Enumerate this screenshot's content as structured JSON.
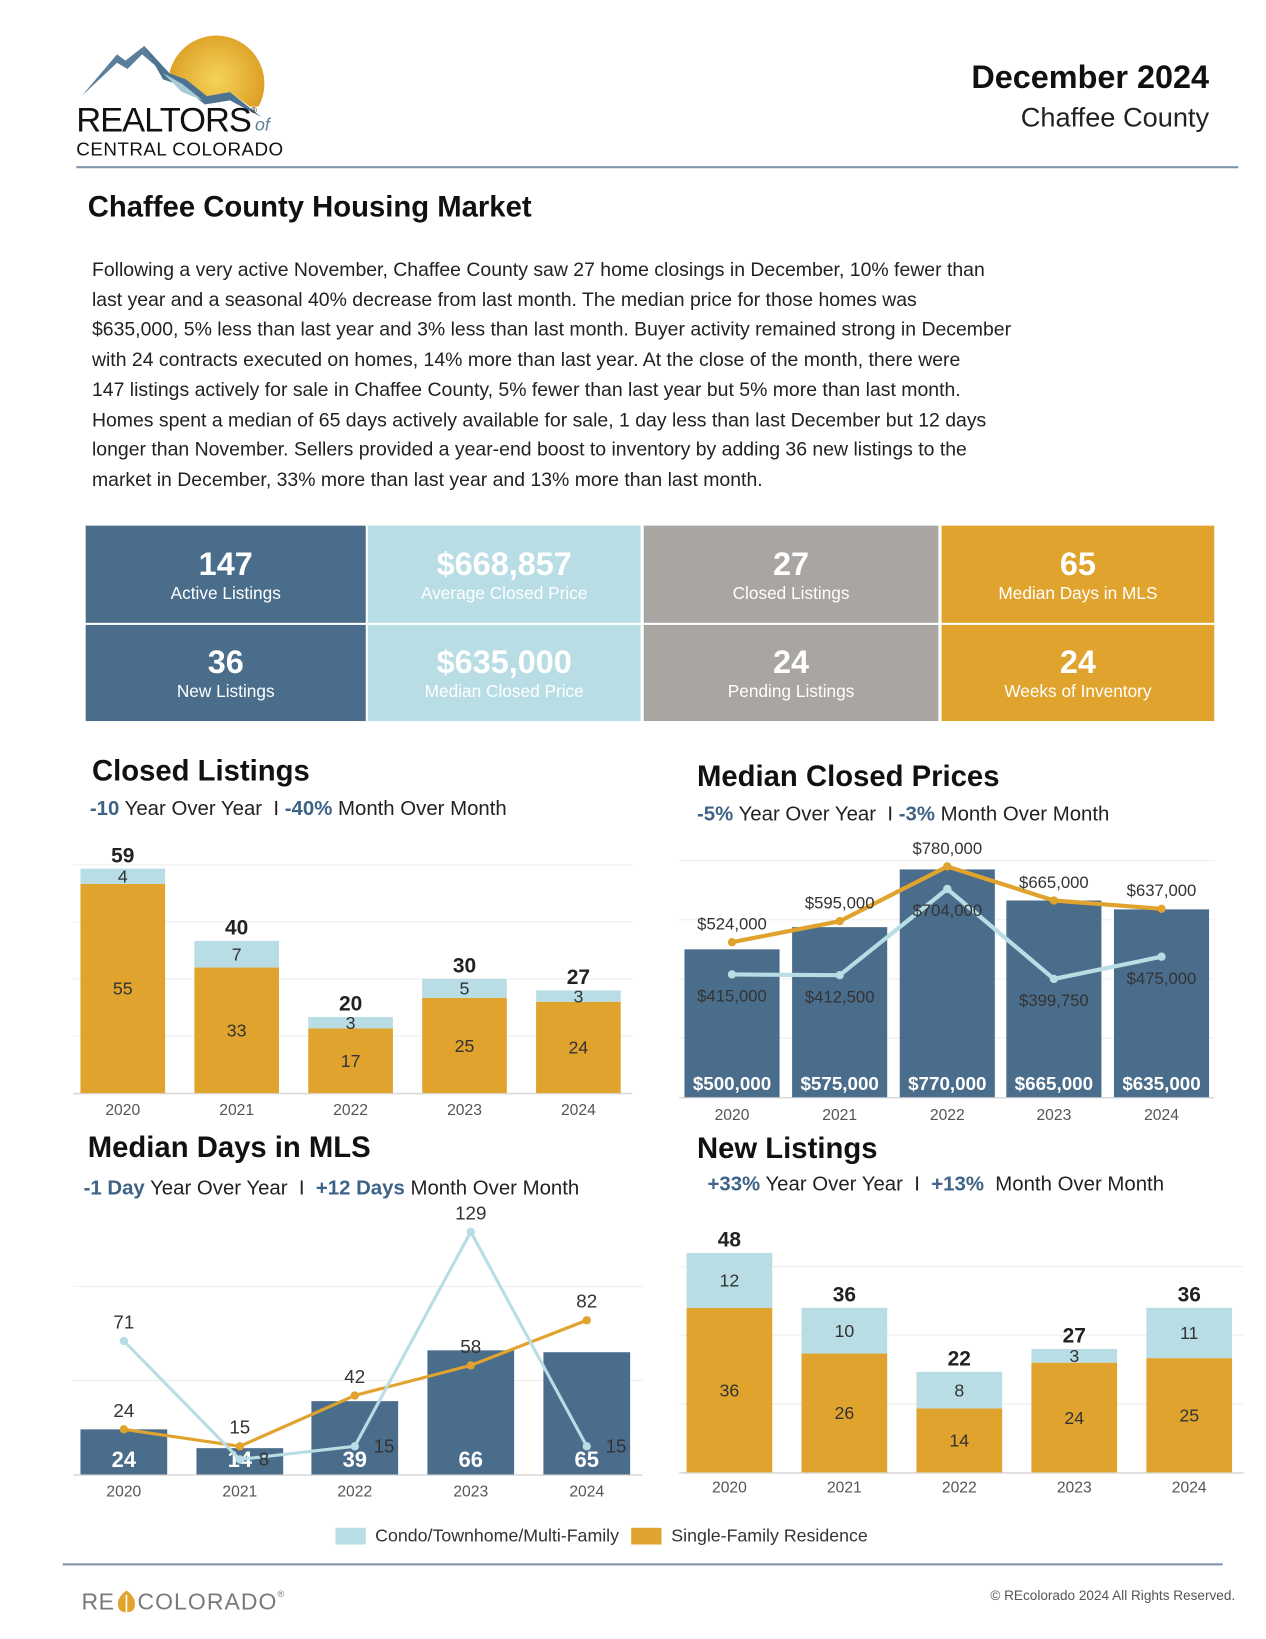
{
  "logo": {
    "name": "REALTORS",
    "of": "of",
    "region": "CENTRAL COLORADO"
  },
  "header": {
    "period": "December 2024",
    "county": "Chaffee County"
  },
  "main_title": "Chaffee County Housing Market",
  "summary_lines": [
    "Following a very active November, Chaffee County saw 27 home closings in December, 10% fewer than",
    "last year and a seasonal 40% decrease from last month. The median price for those homes was",
    "$635,000, 5% less than last year and 3% less than last month. Buyer activity remained strong in December",
    "with 24 contracts executed on homes, 14% more than last year. At the close of the month, there were",
    "147 listings actively for sale in Chaffee County, 5% fewer than last year but  5% more than last month.",
    "Homes spent a median of 65 days actively available for sale, 1 day less than last December but 12 days",
    "longer than November.  Sellers provided a year-end boost to inventory by adding 36 new listings to the",
    "market in December, 33% more than last year and 13% more than last month."
  ],
  "stats": [
    {
      "value": "147",
      "label": "Active Listings"
    },
    {
      "value": "$668,857",
      "label": "Average Closed Price"
    },
    {
      "value": "27",
      "label": "Closed Listings"
    },
    {
      "value": "65",
      "label": "Median Days in MLS"
    },
    {
      "value": "36",
      "label": "New Listings"
    },
    {
      "value": "$635,000",
      "label": "Median Closed Price"
    },
    {
      "value": "24",
      "label": "Pending Listings"
    },
    {
      "value": "24",
      "label": "Weeks of Inventory"
    }
  ],
  "colors": {
    "blue": "#4a6d8b",
    "light_blue": "#b8dde4",
    "gray": "#a8a5a3",
    "gold": "#e0a32d",
    "accent_text": "#3f6287"
  },
  "legend": {
    "condo": "Condo/Townhome/Multi-Family",
    "sfr": "Single-Family Residence"
  },
  "chart_data": [
    {
      "type": "bar",
      "stacked": true,
      "title": "Closed Listings",
      "yoy_value": "-10",
      "yoy_label": "Year Over Year",
      "separator": "I",
      "mom_value": "-40%",
      "mom_label": "Month Over Month",
      "categories": [
        "2020",
        "2021",
        "2022",
        "2023",
        "2024"
      ],
      "series": [
        {
          "name": "Single-Family Residence",
          "color": "#e0a32d",
          "values": [
            55,
            33,
            17,
            25,
            24
          ]
        },
        {
          "name": "Condo/Townhome/Multi-Family",
          "color": "#b8dde4",
          "values": [
            4,
            7,
            3,
            5,
            3
          ]
        }
      ],
      "totals": [
        59,
        40,
        20,
        30,
        27
      ],
      "grid": true
    },
    {
      "type": "bar+line",
      "title": "Median Closed Prices",
      "yoy_value": "-5%",
      "yoy_label": "Year Over Year",
      "separator": "I",
      "mom_value": "-3%",
      "mom_label": "Month Over Month",
      "categories": [
        "2020",
        "2021",
        "2022",
        "2023",
        "2024"
      ],
      "bars": {
        "color": "#4a6d8b",
        "values": [
          500000,
          575000,
          770000,
          665000,
          635000
        ]
      },
      "lines": [
        {
          "name": "Single-Family Residence",
          "color": "#e0a32d",
          "values": [
            524000,
            595000,
            780000,
            665000,
            637000
          ]
        },
        {
          "name": "Condo/Townhome/Multi-Family",
          "color": "#b8dde4",
          "values": [
            415000,
            412500,
            704000,
            399750,
            475000
          ]
        }
      ],
      "format": "currency",
      "grid": true
    },
    {
      "type": "bar+line",
      "title": "Median Days in MLS",
      "yoy_value": "-1 Day",
      "yoy_label": "Year Over Year",
      "separator": "I",
      "mom_value": "+12 Days",
      "mom_label": "Month Over Month",
      "categories": [
        "2020",
        "2021",
        "2022",
        "2023",
        "2024"
      ],
      "bars": {
        "color": "#4a6d8b",
        "values": [
          24,
          14,
          39,
          66,
          65
        ]
      },
      "lines": [
        {
          "name": "Single-Family Residence",
          "color": "#e0a32d",
          "values": [
            24,
            15,
            42,
            58,
            82
          ]
        },
        {
          "name": "Condo/Townhome/Multi-Family",
          "color": "#b8dde4",
          "values": [
            71,
            8,
            15,
            129,
            15
          ]
        }
      ],
      "grid": true
    },
    {
      "type": "bar",
      "stacked": true,
      "title": "New Listings",
      "yoy_value": "+33%",
      "yoy_label": "Year Over Year",
      "separator": "I",
      "mom_value": "+13%",
      "mom_label": "Month Over Month",
      "categories": [
        "2020",
        "2021",
        "2022",
        "2023",
        "2024"
      ],
      "series": [
        {
          "name": "Single-Family Residence",
          "color": "#e0a32d",
          "values": [
            36,
            26,
            14,
            24,
            25
          ]
        },
        {
          "name": "Condo/Townhome/Multi-Family",
          "color": "#b8dde4",
          "values": [
            12,
            10,
            8,
            3,
            11
          ]
        }
      ],
      "totals": [
        48,
        36,
        22,
        27,
        36
      ],
      "grid": true
    }
  ],
  "footer": {
    "brand_re": "RE",
    "brand_colorado": "COLORADO",
    "copyright": "© REcolorado 2024 All Rights Reserved."
  }
}
